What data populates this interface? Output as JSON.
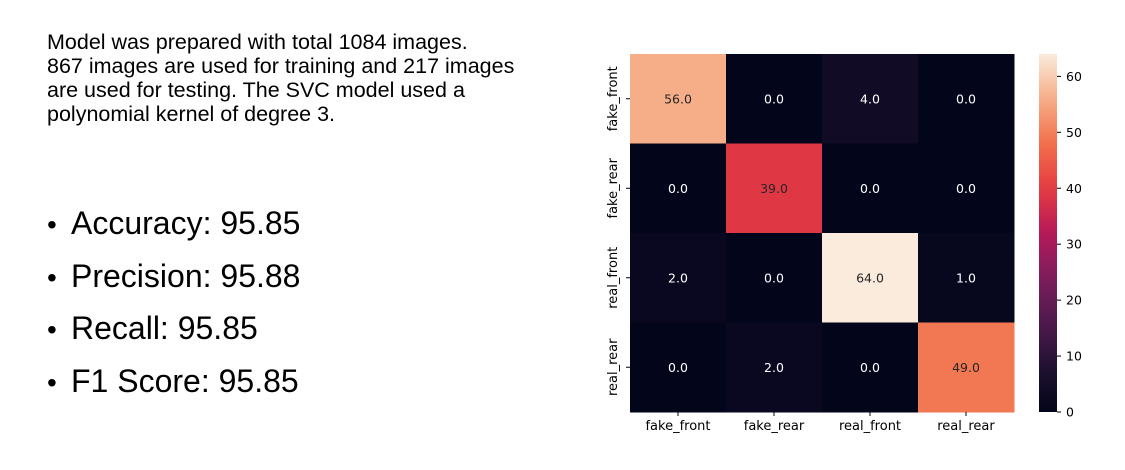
{
  "intro_lines": [
    "Model was prepared with total 1084 images.",
    "867 images are used for training and 217 images",
    "are used for testing. The SVC model used a",
    "polynomial kernel of degree 3."
  ],
  "metrics": [
    "Accuracy: 95.85",
    "Precision: 95.88",
    "Recall: 95.85",
    "F1 Score: 95.85"
  ],
  "bullet_char": "•",
  "chart_data": {
    "type": "heatmap",
    "title": "",
    "xlabel": "",
    "ylabel": "",
    "x_categories": [
      "fake_front",
      "fake_rear",
      "real_front",
      "real_rear"
    ],
    "y_categories": [
      "fake_front",
      "fake_rear",
      "real_front",
      "real_rear"
    ],
    "values": [
      [
        56,
        0,
        4,
        0
      ],
      [
        0,
        39,
        0,
        0
      ],
      [
        2,
        0,
        64,
        1
      ],
      [
        0,
        2,
        0,
        49
      ]
    ],
    "cell_labels": [
      [
        "56.0",
        "0.0",
        "4.0",
        "0.0"
      ],
      [
        "0.0",
        "39.0",
        "0.0",
        "0.0"
      ],
      [
        "2.0",
        "0.0",
        "64.0",
        "1.0"
      ],
      [
        "0.0",
        "2.0",
        "0.0",
        "49.0"
      ]
    ],
    "colorbar": {
      "min": 0,
      "max": 64,
      "ticks": [
        0,
        10,
        20,
        30,
        40,
        50,
        60
      ],
      "colormap": "rocket"
    },
    "grid": false
  }
}
